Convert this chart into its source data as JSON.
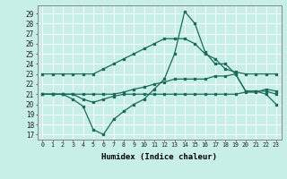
{
  "title": "",
  "xlabel": "Humidex (Indice chaleur)",
  "background_color": "#c8eee8",
  "grid_color": "#b0d8d0",
  "line_color": "#1a6b5a",
  "xlim": [
    -0.5,
    23.5
  ],
  "ylim": [
    16.5,
    29.8
  ],
  "yticks": [
    17,
    18,
    19,
    20,
    21,
    22,
    23,
    24,
    25,
    26,
    27,
    28,
    29
  ],
  "xticks": [
    0,
    1,
    2,
    3,
    4,
    5,
    6,
    7,
    8,
    9,
    10,
    11,
    12,
    13,
    14,
    15,
    16,
    17,
    18,
    19,
    20,
    21,
    22,
    23
  ],
  "series": [
    {
      "x": [
        0,
        1,
        2,
        3,
        4,
        5,
        6,
        7,
        8,
        9,
        10,
        11,
        12,
        13,
        14,
        15,
        16,
        17,
        18,
        19,
        20,
        21,
        22,
        23
      ],
      "y": [
        23,
        23,
        23,
        23,
        23,
        23,
        23.5,
        24,
        24.5,
        25,
        25.5,
        26,
        26.5,
        26.5,
        26.5,
        26,
        25,
        24.5,
        23.5,
        23.2,
        23,
        23,
        23,
        23
      ]
    },
    {
      "x": [
        0,
        1,
        2,
        3,
        4,
        5,
        6,
        7,
        8,
        9,
        10,
        11,
        12,
        13,
        14,
        15,
        16,
        17,
        18,
        19,
        20,
        21,
        22,
        23
      ],
      "y": [
        21,
        21,
        21,
        21,
        21,
        21,
        21,
        21,
        21.2,
        21.5,
        21.7,
        22,
        22.2,
        22.5,
        22.5,
        22.5,
        22.5,
        22.8,
        22.8,
        23,
        21.3,
        21.3,
        21.3,
        21
      ]
    },
    {
      "x": [
        0,
        1,
        2,
        3,
        4,
        5,
        6,
        7,
        8,
        9,
        10,
        11,
        12,
        13,
        14,
        15,
        16,
        17,
        18,
        19,
        20,
        21,
        22,
        23
      ],
      "y": [
        21,
        21,
        21,
        21,
        20.5,
        20.2,
        20.5,
        20.8,
        21,
        21,
        21,
        21,
        21,
        21,
        21,
        21,
        21,
        21,
        21,
        21,
        21.2,
        21.2,
        21.5,
        21.3
      ]
    },
    {
      "x": [
        0,
        1,
        2,
        3,
        4,
        5,
        6,
        7,
        8,
        9,
        10,
        11,
        12,
        13,
        14,
        15,
        16,
        17,
        18,
        19,
        20,
        21,
        22,
        23
      ],
      "y": [
        21,
        21,
        21,
        20.5,
        19.8,
        17.5,
        17,
        18.5,
        19.3,
        20,
        20.5,
        21.5,
        22.5,
        25,
        29.2,
        28,
        25.2,
        24,
        24,
        23,
        21.3,
        21.3,
        21,
        20
      ]
    }
  ]
}
